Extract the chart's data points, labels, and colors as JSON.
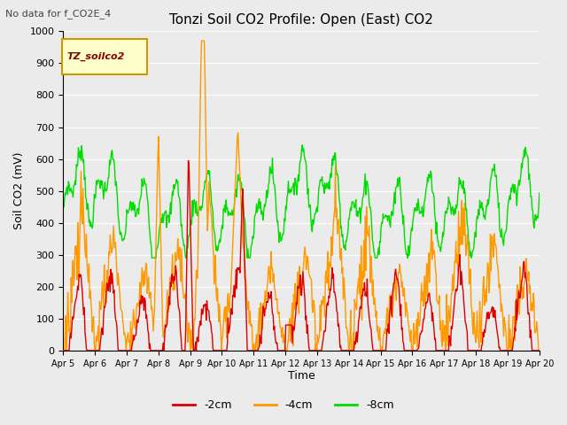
{
  "title": "Tonzi Soil CO2 Profile: Open (East) CO2",
  "subtitle": "No data for f_CO2E_4",
  "ylabel": "Soil CO2 (mV)",
  "xlabel": "Time",
  "legend_label": "TZ_soilco2",
  "series_labels": [
    "-2cm",
    "-4cm",
    "-8cm"
  ],
  "series_colors": [
    "#dd0000",
    "#ff9900",
    "#00dd00"
  ],
  "xlim_days": [
    0,
    15
  ],
  "ylim": [
    0,
    1000
  ],
  "yticks": [
    0,
    100,
    200,
    300,
    400,
    500,
    600,
    700,
    800,
    900,
    1000
  ],
  "xtick_labels": [
    "Apr 5",
    "Apr 6",
    "Apr 7",
    "Apr 8",
    "Apr 9",
    "Apr 10",
    "Apr 11",
    "Apr 12",
    "Apr 13",
    "Apr 14",
    "Apr 15",
    "Apr 16",
    "Apr 17",
    "Apr 18",
    "Apr 19",
    "Apr 20"
  ],
  "bg_color": "#ebebeb",
  "plot_bg_color": "#ebebeb",
  "grid_color": "#ffffff",
  "line_width": 1.0,
  "figsize": [
    6.4,
    4.8
  ],
  "dpi": 100
}
